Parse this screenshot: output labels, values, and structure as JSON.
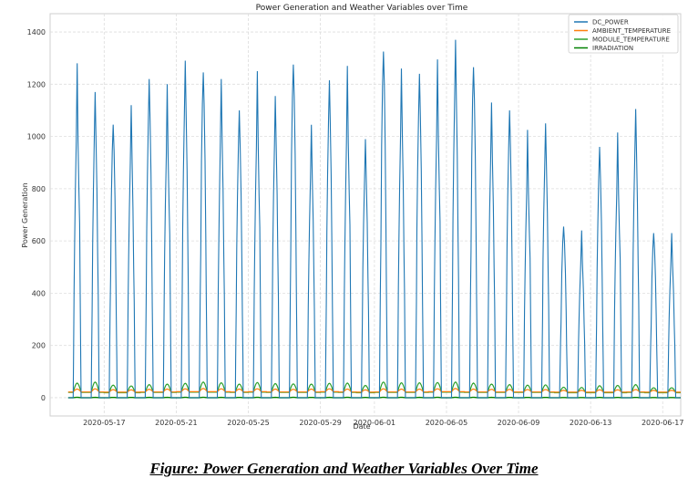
{
  "caption": "Figure: Power Generation and Weather Variables Over Time",
  "chart_data": {
    "type": "line",
    "title": "Power Generation and Weather Variables over Time",
    "xlabel": "Date",
    "ylabel": "Power Generation",
    "ylim": [
      -70,
      1470
    ],
    "xlim": [
      "2020-05-14",
      "2020-06-18"
    ],
    "yticks": [
      0,
      200,
      400,
      600,
      800,
      1000,
      1200,
      1400
    ],
    "xticks": [
      "2020-05-17",
      "2020-05-21",
      "2020-05-25",
      "2020-05-29",
      "2020-06-01",
      "2020-06-05",
      "2020-06-09",
      "2020-06-13",
      "2020-06-17"
    ],
    "grid": true,
    "legend_position": "top-right",
    "x_dates": [
      "2020-05-15",
      "2020-05-16",
      "2020-05-17",
      "2020-05-18",
      "2020-05-19",
      "2020-05-20",
      "2020-05-21",
      "2020-05-22",
      "2020-05-23",
      "2020-05-24",
      "2020-05-25",
      "2020-05-26",
      "2020-05-27",
      "2020-05-28",
      "2020-05-29",
      "2020-05-30",
      "2020-05-31",
      "2020-06-01",
      "2020-06-02",
      "2020-06-03",
      "2020-06-04",
      "2020-06-05",
      "2020-06-06",
      "2020-06-07",
      "2020-06-08",
      "2020-06-09",
      "2020-06-10",
      "2020-06-11",
      "2020-06-12",
      "2020-06-13",
      "2020-06-14",
      "2020-06-15",
      "2020-06-16",
      "2020-06-17"
    ],
    "series": [
      {
        "name": "DC_POWER",
        "color": "#1f77b4",
        "daily_peak": [
          1280,
          1170,
          1045,
          1120,
          1220,
          1200,
          1290,
          1245,
          1220,
          1100,
          1250,
          1155,
          1275,
          1045,
          1215,
          1270,
          990,
          1325,
          1260,
          1240,
          1295,
          1370,
          1265,
          1130,
          1100,
          1025,
          1050,
          655,
          640,
          960,
          1015,
          1105,
          630,
          630
        ]
      },
      {
        "name": "AMBIENT_TEMPERATURE",
        "color": "#ff7f0e",
        "daily_peak": [
          33,
          34,
          31,
          30,
          32,
          33,
          34,
          35,
          34,
          33,
          34,
          33,
          32,
          33,
          34,
          33,
          30,
          34,
          33,
          33,
          34,
          35,
          33,
          32,
          32,
          31,
          31,
          28,
          28,
          30,
          30,
          31,
          28,
          28
        ],
        "daily_low": [
          22,
          22,
          21,
          21,
          22,
          22,
          23,
          23,
          23,
          22,
          23,
          22,
          22,
          22,
          23,
          22,
          21,
          22,
          22,
          22,
          23,
          23,
          22,
          22,
          22,
          22,
          22,
          21,
          21,
          21,
          21,
          22,
          21,
          21
        ]
      },
      {
        "name": "MODULE_TEMPERATURE",
        "color": "#2ca02c",
        "daily_peak": [
          56,
          60,
          48,
          45,
          50,
          52,
          55,
          60,
          57,
          52,
          58,
          54,
          53,
          52,
          55,
          56,
          47,
          60,
          57,
          57,
          58,
          60,
          56,
          52,
          50,
          48,
          49,
          40,
          39,
          46,
          47,
          50,
          38,
          38
        ],
        "daily_low": [
          20,
          20,
          19,
          19,
          20,
          20,
          21,
          21,
          21,
          20,
          21,
          20,
          20,
          20,
          21,
          20,
          19,
          20,
          20,
          20,
          21,
          21,
          20,
          20,
          20,
          20,
          20,
          19,
          19,
          19,
          19,
          20,
          19,
          19
        ]
      },
      {
        "name": "IRRADIATION",
        "color": "#008000",
        "daily_peak": [
          1.2,
          1.1,
          1.0,
          1.0,
          1.1,
          1.1,
          1.2,
          1.2,
          1.1,
          1.0,
          1.2,
          1.1,
          1.2,
          1.0,
          1.1,
          1.2,
          0.9,
          1.2,
          1.2,
          1.1,
          1.2,
          1.2,
          1.2,
          1.1,
          1.0,
          1.0,
          1.0,
          0.6,
          0.6,
          0.9,
          0.9,
          1.0,
          0.6,
          0.6
        ]
      }
    ]
  }
}
